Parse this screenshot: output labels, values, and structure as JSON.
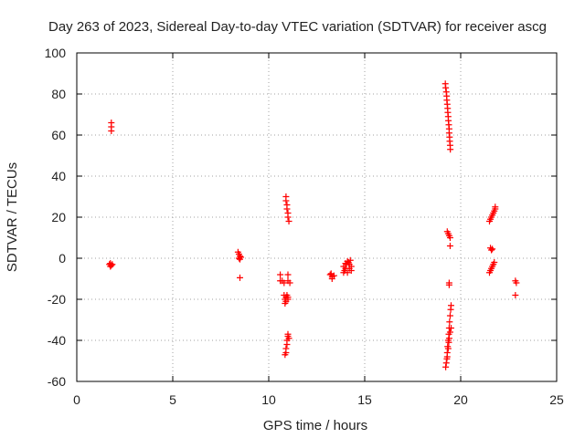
{
  "chart_data": {
    "type": "scatter",
    "title": "Day 263 of 2023, Sidereal Day-to-day VTEC variation (SDTVAR) for receiver ascg",
    "xlabel": "GPS time / hours",
    "ylabel": "SDTVAR / TECUs",
    "xlim": [
      0,
      25
    ],
    "ylim": [
      -60,
      100
    ],
    "xticks": [
      0,
      5,
      10,
      15,
      20,
      25
    ],
    "yticks": [
      -60,
      -40,
      -20,
      0,
      20,
      40,
      60,
      80,
      100
    ],
    "grid": true,
    "marker": "+",
    "color": "#ff0000",
    "series": [
      {
        "name": "SDTVAR",
        "points": [
          [
            1.8,
            66
          ],
          [
            1.8,
            64
          ],
          [
            1.8,
            62
          ],
          [
            1.7,
            -3
          ],
          [
            1.75,
            -2.5
          ],
          [
            1.8,
            -3.5
          ],
          [
            1.85,
            -3
          ],
          [
            1.75,
            -4
          ],
          [
            8.4,
            3
          ],
          [
            8.45,
            2
          ],
          [
            8.5,
            1
          ],
          [
            8.45,
            0
          ],
          [
            8.5,
            -0.5
          ],
          [
            8.55,
            0.5
          ],
          [
            8.5,
            -9.5
          ],
          [
            10.6,
            -8
          ],
          [
            10.6,
            -11
          ],
          [
            10.7,
            -11
          ],
          [
            10.8,
            -12
          ],
          [
            11.0,
            -8
          ],
          [
            11.0,
            -11
          ],
          [
            11.1,
            -12
          ],
          [
            10.8,
            -18
          ],
          [
            10.9,
            -19
          ],
          [
            10.85,
            -20
          ],
          [
            10.9,
            -21
          ],
          [
            11.0,
            -19
          ],
          [
            11.0,
            -20
          ],
          [
            10.95,
            -18
          ],
          [
            10.85,
            -22
          ],
          [
            10.9,
            30
          ],
          [
            10.9,
            28
          ],
          [
            10.95,
            26
          ],
          [
            10.95,
            24
          ],
          [
            11.0,
            22
          ],
          [
            11.0,
            20
          ],
          [
            11.05,
            18
          ],
          [
            11.0,
            -37
          ],
          [
            11.0,
            -38
          ],
          [
            10.95,
            -40
          ],
          [
            10.95,
            -42
          ],
          [
            10.9,
            -44
          ],
          [
            10.9,
            -46
          ],
          [
            10.85,
            -47
          ],
          [
            11.05,
            -39
          ],
          [
            13.2,
            -8
          ],
          [
            13.3,
            -9
          ],
          [
            13.25,
            -7.5
          ],
          [
            13.3,
            -10
          ],
          [
            13.4,
            -8.5
          ],
          [
            13.9,
            -4
          ],
          [
            13.95,
            -6
          ],
          [
            14.0,
            -5
          ],
          [
            14.05,
            -3
          ],
          [
            14.1,
            -7
          ],
          [
            14.15,
            -2
          ],
          [
            14.2,
            -5
          ],
          [
            14.25,
            -1
          ],
          [
            14.3,
            -4
          ],
          [
            14.3,
            -6
          ],
          [
            14.1,
            -1.5
          ],
          [
            14.0,
            -2.5
          ],
          [
            13.9,
            -7
          ],
          [
            14.2,
            -3
          ],
          [
            19.2,
            85
          ],
          [
            19.22,
            83
          ],
          [
            19.25,
            81
          ],
          [
            19.27,
            79
          ],
          [
            19.28,
            77
          ],
          [
            19.3,
            75
          ],
          [
            19.32,
            73
          ],
          [
            19.33,
            71
          ],
          [
            19.35,
            69
          ],
          [
            19.36,
            67
          ],
          [
            19.38,
            65
          ],
          [
            19.4,
            63
          ],
          [
            19.4,
            61
          ],
          [
            19.42,
            59
          ],
          [
            19.43,
            57
          ],
          [
            19.45,
            55
          ],
          [
            19.46,
            53
          ],
          [
            19.3,
            13
          ],
          [
            19.35,
            12
          ],
          [
            19.4,
            11
          ],
          [
            19.45,
            10
          ],
          [
            19.45,
            6
          ],
          [
            19.4,
            -12
          ],
          [
            19.4,
            -13
          ],
          [
            19.5,
            -23
          ],
          [
            19.48,
            -25
          ],
          [
            19.45,
            -28
          ],
          [
            19.42,
            -31
          ],
          [
            19.4,
            -34
          ],
          [
            19.5,
            -34
          ],
          [
            19.38,
            -37
          ],
          [
            19.45,
            -36
          ],
          [
            19.35,
            -40
          ],
          [
            19.4,
            -39
          ],
          [
            19.32,
            -43
          ],
          [
            19.38,
            -41
          ],
          [
            19.3,
            -46
          ],
          [
            19.35,
            -44
          ],
          [
            19.28,
            -49
          ],
          [
            19.3,
            -48
          ],
          [
            19.25,
            -51
          ],
          [
            19.22,
            -53
          ],
          [
            21.5,
            18
          ],
          [
            21.55,
            19
          ],
          [
            21.6,
            20
          ],
          [
            21.65,
            21
          ],
          [
            21.7,
            22
          ],
          [
            21.75,
            23
          ],
          [
            21.8,
            24
          ],
          [
            21.8,
            25
          ],
          [
            21.55,
            5
          ],
          [
            21.6,
            4
          ],
          [
            21.65,
            4.5
          ],
          [
            21.5,
            -7
          ],
          [
            21.55,
            -6
          ],
          [
            21.6,
            -5
          ],
          [
            21.65,
            -4
          ],
          [
            21.7,
            -3
          ],
          [
            21.75,
            -2
          ],
          [
            22.85,
            -11
          ],
          [
            22.9,
            -12
          ],
          [
            22.85,
            -18
          ]
        ]
      }
    ]
  }
}
